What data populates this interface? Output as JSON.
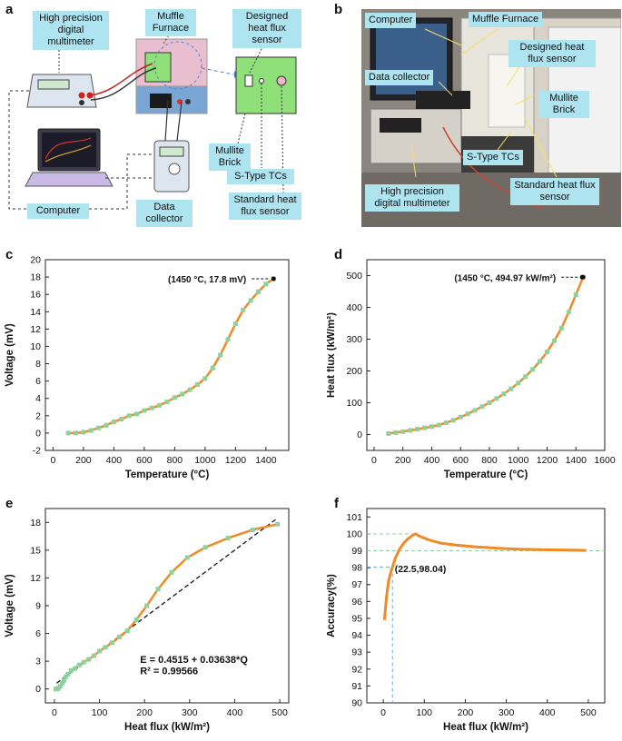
{
  "panels": {
    "a": "a",
    "b": "b",
    "c": "c",
    "d": "d",
    "e": "e",
    "f": "f"
  },
  "schematic": {
    "multimeter": "High precision digital multimeter",
    "furnace": "Muffle Furnace",
    "sensor": "Designed heat flux sensor",
    "brick": "Mullite Brick",
    "tcs": "S-Type TCs",
    "standard": "Standard heat flux sensor",
    "computer": "Computer",
    "collector": "Data collector"
  },
  "photo": {
    "computer": "Computer",
    "furnace": "Muffle Furnace",
    "sensor": "Designed heat flux sensor",
    "collector": "Data collector",
    "brick": "Mullite Brick",
    "tcs": "S-Type TCs",
    "standard": "Standard heat flux sensor",
    "multimeter": "High precision digital multimeter"
  },
  "colors": {
    "line": "#f08a24",
    "marker": "#8fd19e",
    "dash": "#222222",
    "guide": "#8fd19e",
    "guide2": "#6fa8dc",
    "callout": "#aee3f0"
  },
  "chart_data": [
    {
      "id": "c",
      "type": "line",
      "xlabel": "Temperature (°C)",
      "ylabel": "Voltage (mV)",
      "xlim": [
        -50,
        1550
      ],
      "ylim": [
        -2,
        20
      ],
      "xticks": [
        0,
        200,
        400,
        600,
        800,
        1000,
        1200,
        1400
      ],
      "yticks": [
        -2,
        0,
        2,
        4,
        6,
        8,
        10,
        12,
        14,
        16,
        18,
        20
      ],
      "annotation": "(1450 °C, 17.8 mV)",
      "x": [
        100,
        150,
        200,
        250,
        300,
        350,
        400,
        450,
        500,
        550,
        600,
        650,
        700,
        750,
        800,
        850,
        900,
        950,
        1000,
        1050,
        1100,
        1150,
        1200,
        1250,
        1300,
        1350,
        1400,
        1450
      ],
      "y": [
        0,
        0,
        0.1,
        0.3,
        0.6,
        0.9,
        1.3,
        1.6,
        2.0,
        2.2,
        2.6,
        2.9,
        3.2,
        3.6,
        4.1,
        4.5,
        5.0,
        5.6,
        6.3,
        7.5,
        9.0,
        10.8,
        12.6,
        14.2,
        15.3,
        16.3,
        17.2,
        17.8
      ]
    },
    {
      "id": "d",
      "type": "line",
      "xlabel": "Temperature (°C)",
      "ylabel": "Heat flux (kW/m²)",
      "xlim": [
        -50,
        1600
      ],
      "ylim": [
        -50,
        550
      ],
      "xticks": [
        0,
        200,
        400,
        600,
        800,
        1000,
        1200,
        1400,
        1600
      ],
      "yticks": [
        0,
        100,
        200,
        300,
        400,
        500
      ],
      "annotation": "(1450 °C, 494.97 kW/m²)",
      "x": [
        100,
        150,
        200,
        250,
        300,
        350,
        400,
        450,
        500,
        550,
        600,
        650,
        700,
        750,
        800,
        850,
        900,
        950,
        1000,
        1050,
        1100,
        1150,
        1200,
        1250,
        1300,
        1350,
        1400,
        1450
      ],
      "y": [
        3,
        6,
        9,
        13,
        17,
        21,
        25,
        30,
        37,
        45,
        55,
        65,
        76,
        88,
        100,
        113,
        128,
        144,
        162,
        182,
        205,
        230,
        260,
        295,
        335,
        385,
        440,
        495
      ]
    },
    {
      "id": "e",
      "type": "line",
      "xlabel": "Heat flux (kW/m²)",
      "ylabel": "Voltage (mV)",
      "xlim": [
        -20,
        520
      ],
      "ylim": [
        -1.5,
        19.5
      ],
      "xticks": [
        0,
        100,
        200,
        300,
        400,
        500
      ],
      "yticks": [
        0,
        3,
        6,
        9,
        12,
        15,
        18
      ],
      "fit": "E = 0.4515 + 0.03638*Q",
      "r2": "R² = 0.99566",
      "x": [
        3,
        6,
        9,
        13,
        17,
        21,
        25,
        30,
        37,
        45,
        55,
        65,
        76,
        88,
        100,
        113,
        128,
        144,
        162,
        182,
        205,
        230,
        260,
        295,
        335,
        385,
        440,
        495
      ],
      "y": [
        0,
        0,
        0.1,
        0.3,
        0.6,
        0.9,
        1.3,
        1.6,
        2.0,
        2.2,
        2.6,
        2.9,
        3.2,
        3.6,
        4.1,
        4.5,
        5.0,
        5.6,
        6.3,
        7.5,
        9.0,
        10.8,
        12.6,
        14.2,
        15.3,
        16.3,
        17.2,
        17.8
      ]
    },
    {
      "id": "f",
      "type": "line",
      "xlabel": "Heat flux (kW/m²)",
      "ylabel": "Accuracy(%)",
      "xlim": [
        -40,
        540
      ],
      "ylim": [
        90,
        101.5
      ],
      "xticks": [
        0,
        100,
        200,
        300,
        400,
        500
      ],
      "yticks": [
        90,
        91,
        92,
        93,
        94,
        95,
        96,
        97,
        98,
        99,
        100,
        101
      ],
      "annotation": "(22.5,98.04)",
      "x": [
        3,
        8,
        13,
        18,
        22.5,
        30,
        40,
        50,
        60,
        70,
        78,
        90,
        110,
        140,
        180,
        230,
        280,
        330,
        380,
        430,
        495
      ],
      "y": [
        94.9,
        96.3,
        97.2,
        97.7,
        98.04,
        98.6,
        99.1,
        99.45,
        99.7,
        99.88,
        100,
        99.85,
        99.65,
        99.45,
        99.33,
        99.22,
        99.15,
        99.1,
        99.07,
        99.05,
        99.02
      ]
    }
  ]
}
